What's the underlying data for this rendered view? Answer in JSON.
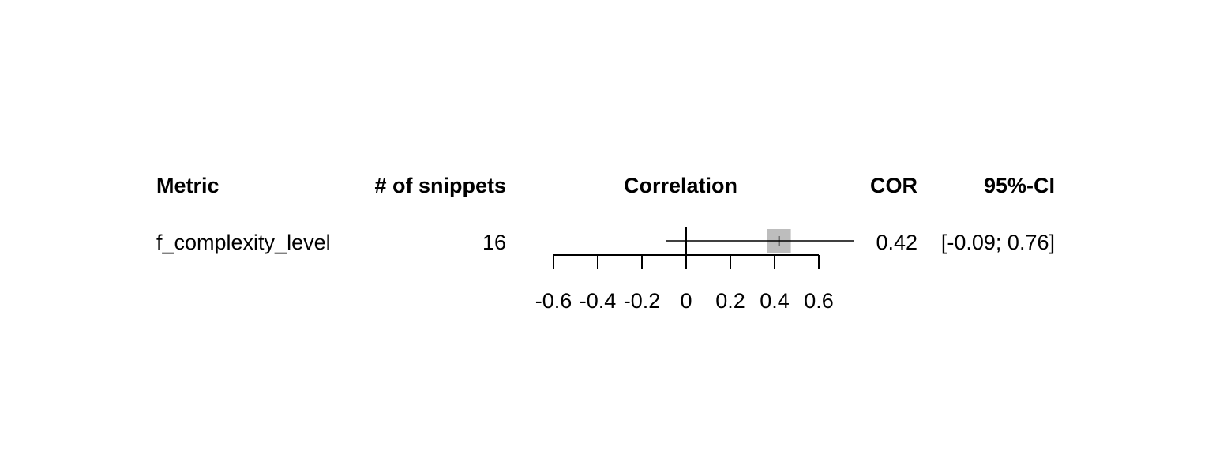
{
  "headers": {
    "metric": "Metric",
    "snippets": "# of snippets",
    "correlation": "Correlation",
    "cor": "COR",
    "ci": "95%-CI"
  },
  "rows": [
    {
      "metric": "f_complexity_level",
      "snippets": "16",
      "cor_text": "0.42",
      "ci_text": "[-0.09; 0.76]"
    }
  ],
  "chart_data": {
    "type": "forest",
    "x_ticks": [
      -0.6,
      -0.4,
      -0.2,
      0,
      0.2,
      0.4,
      0.6
    ],
    "x_tick_labels": [
      "-0.6",
      "-0.4",
      "-0.2",
      "0",
      "0.2",
      "0.4",
      "0.6"
    ],
    "reference_line": 0,
    "estimates": [
      {
        "label": "f_complexity_level",
        "value": 0.42,
        "ci_low": -0.09,
        "ci_high": 0.76
      }
    ],
    "colors": {
      "box": "#bdbdbd",
      "line": "#000000"
    }
  }
}
